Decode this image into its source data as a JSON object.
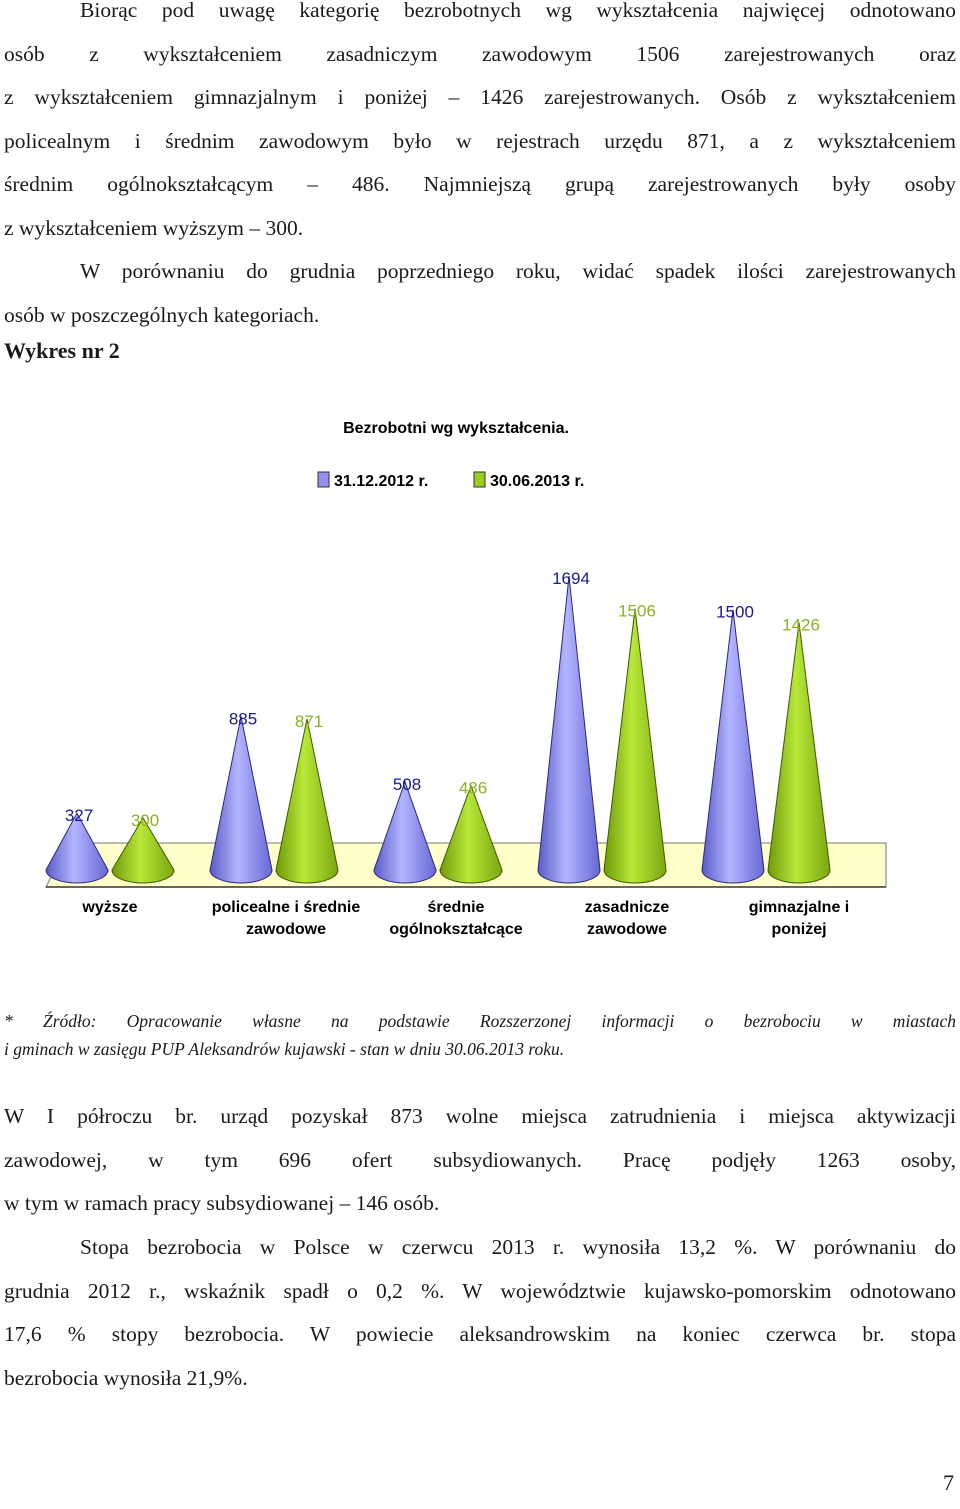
{
  "paragraph1": {
    "lines": [
      "Biorąc pod uwagę kategorię bezrobotnych wg wykształcenia najwięcej odnotowano",
      "osób z wykształceniem zasadniczym zawodowym 1506 zarejestrowanych oraz",
      "z wykształceniem gimnazjalnym i poniżej – 1426 zarejestrowanych. Osób z wykształceniem",
      "policealnym i średnim zawodowym było w rejestrach urzędu 871, a z wykształceniem",
      "średnim ogólnokształcącym – 486. Najmniejszą grupą zarejestrowanych były osoby",
      "z wykształceniem wyższym – 300."
    ]
  },
  "paragraph2": {
    "lines": [
      "W porównaniu do grudnia poprzedniego roku, widać spadek ilości zarejestrowanych",
      "osób w poszczególnych kategoriach."
    ]
  },
  "chart_caption": "Wykres nr 2",
  "chart_data": {
    "type": "bar",
    "title": "Bezrobotni wg wykształcenia.",
    "categories": [
      [
        "wyższe"
      ],
      [
        "policealne i średnie",
        "zawodowe"
      ],
      [
        "średnie",
        "ogólnokształcące"
      ],
      [
        "zasadnicze",
        "zawodowe"
      ],
      [
        "gimnazjalne i",
        "poniżej"
      ]
    ],
    "series": [
      {
        "name": "31.12.2012 r.",
        "values": [
          327,
          885,
          508,
          1694,
          1500
        ],
        "color": "#8f90f0",
        "label_color": "#1a1a8a"
      },
      {
        "name": "30.06.2013 r.",
        "values": [
          300,
          871,
          486,
          1506,
          1426
        ],
        "color": "#9acd1e",
        "label_color": "#8bb31f"
      }
    ],
    "legend_position": "top-center",
    "floor_color": "#ffffcc",
    "ylim": [
      0,
      1900
    ]
  },
  "source_note": {
    "lines": [
      "* Źródło: Opracowanie własne na podstawie Rozszerzonej informacji o bezrobociu w miastach",
      "i gminach w zasięgu PUP Aleksandrów kujawski - stan w dniu 30.06.2013 roku."
    ]
  },
  "paragraph3": {
    "lines": [
      "W I półroczu br. urząd pozyskał 873 wolne miejsca zatrudnienia i miejsca aktywizacji",
      "zawodowej, w tym 696 ofert subsydiowanych. Pracę podjęły 1263 osoby,",
      "w tym w ramach pracy subsydiowanej – 146 osób."
    ]
  },
  "paragraph4": {
    "lines": [
      "Stopa bezrobocia w Polsce w czerwcu 2013 r. wynosiła 13,2 %. W porównaniu do",
      "grudnia 2012 r., wskaźnik spadł o 0,2 %. W województwie kujawsko-pomorskim odnotowano",
      "17,6 % stopy bezrobocia. W powiecie aleksandrowskim na koniec czerwca br. stopa",
      "bezrobocia wynosiła 21,9%."
    ]
  },
  "page_number": "7"
}
